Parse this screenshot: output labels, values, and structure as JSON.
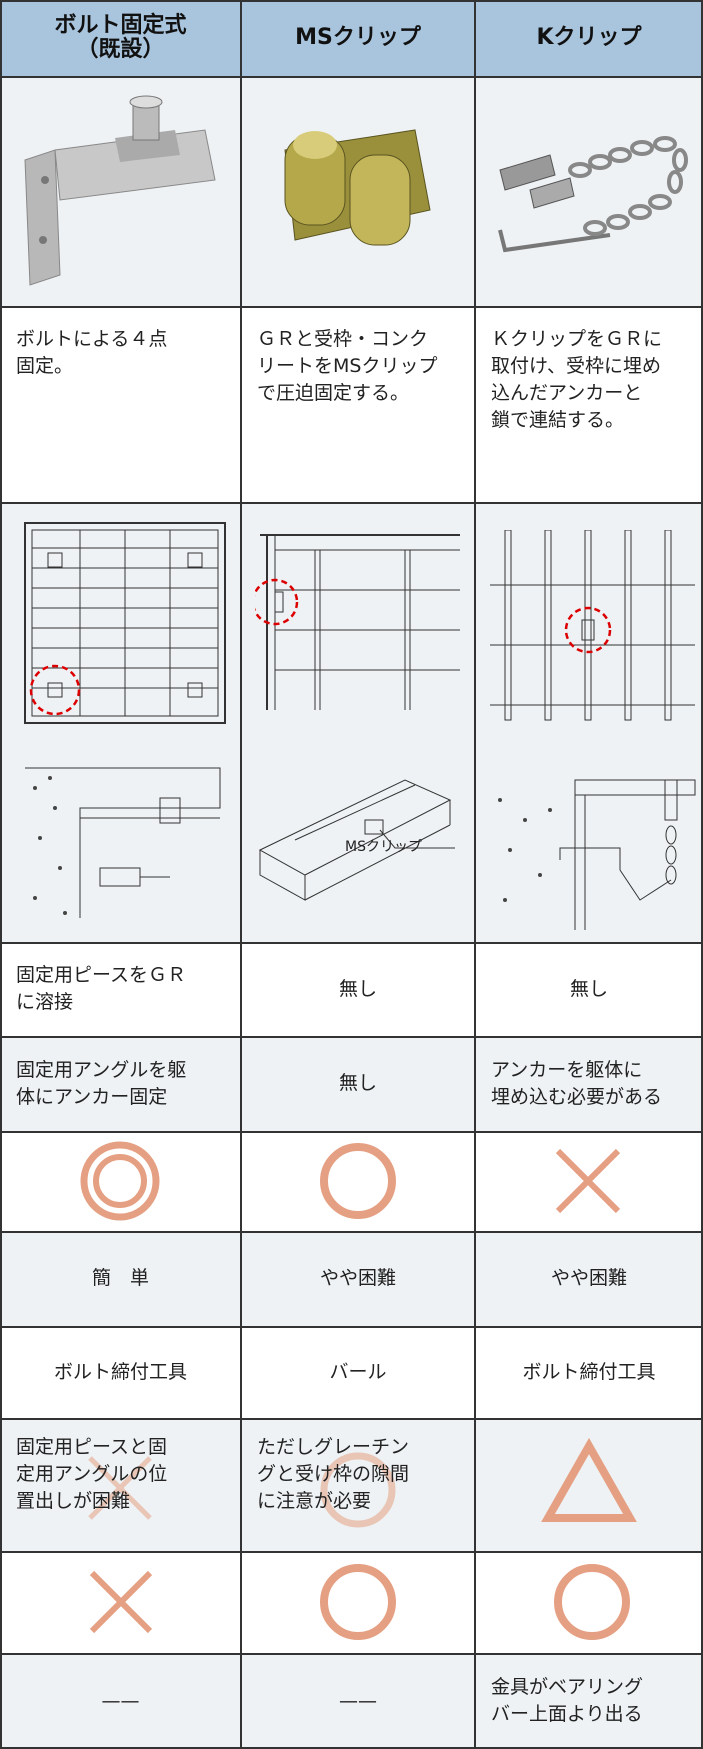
{
  "table": {
    "header": [
      "ボルト固定式\n（既設）",
      "MSクリップ",
      "Kクリップ"
    ],
    "description": [
      "ボルトによる４点\n固定。",
      "ＧＲと受枠・コンク\nリートをMSクリップ\nで圧迫固定する。",
      "ＫクリップをＧＲに\n取付け、受枠に埋め\n込んだアンカーと\n鎖で連結する。"
    ],
    "drawing_label": "MSクリップ",
    "welding": [
      "固定用ピースをＧＲ\nに溶接",
      "無し",
      "無し"
    ],
    "anchor": [
      "固定用アングルを躯\n体にアンカー固定",
      "無し",
      "アンカーを躯体に\n埋め込む必要がある"
    ],
    "difficulty": [
      "簡　単",
      "やや困難",
      "やや困難"
    ],
    "tool": [
      "ボルト締付工具",
      "バール",
      "ボルト締付工具"
    ],
    "note": [
      "固定用ピースと固\n定用アングルの位\n置出しが困難",
      "ただしグレーチン\nグと受け枠の隙間\nに注意が必要"
    ],
    "protrusion": [
      "——",
      "——",
      "金具がベアリング\nバー上面より出る"
    ]
  }
}
